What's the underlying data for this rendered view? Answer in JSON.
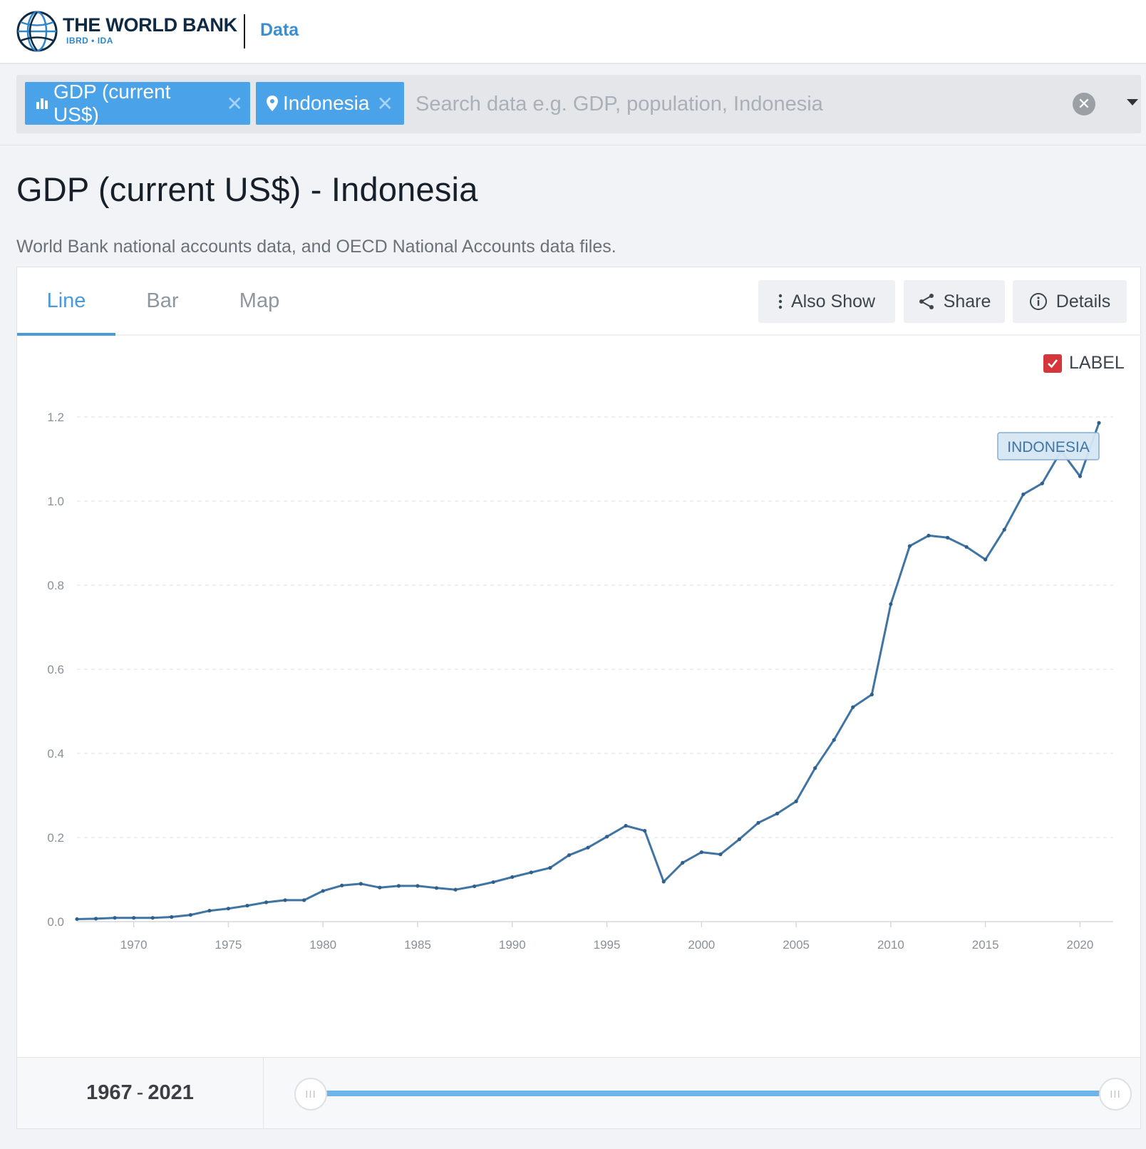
{
  "header": {
    "brand_name": "THE WORLD BANK",
    "brand_sub": "IBRD • IDA",
    "section": "Data"
  },
  "search": {
    "chips": [
      {
        "label": "GDP (current US$)",
        "icon": "bar-chart-icon"
      },
      {
        "label": "Indonesia",
        "icon": "location-pin-icon"
      }
    ],
    "placeholder": "Search data e.g. GDP, population, Indonesia"
  },
  "page": {
    "title": "GDP (current US$) - Indonesia",
    "source": "World Bank national accounts data, and OECD National Accounts data files."
  },
  "tabs": [
    {
      "label": "Line",
      "active": true
    },
    {
      "label": "Bar",
      "active": false
    },
    {
      "label": "Map",
      "active": false
    }
  ],
  "toolbar": {
    "also_show": "Also Show",
    "share": "Share",
    "details": "Details"
  },
  "label_toggle": {
    "label": "LABEL",
    "checked": true
  },
  "colors": {
    "accent": "#4aa3e8",
    "line": "#3f74a3",
    "checkbox": "#d4363c"
  },
  "chart_data": {
    "type": "line",
    "title": "",
    "xlabel": "",
    "ylabel": "",
    "xlim": [
      1967,
      2021
    ],
    "ylim": [
      0,
      1.2
    ],
    "yticks": [
      "0.0",
      "0.2",
      "0.4",
      "0.6",
      "0.8",
      "1.0",
      "1.2"
    ],
    "xticks": [
      "1970",
      "1975",
      "1980",
      "1985",
      "1990",
      "1995",
      "2000",
      "2005",
      "2010",
      "2015",
      "2020"
    ],
    "grid": true,
    "series": [
      {
        "name": "INDONESIA",
        "x": [
          1967,
          1968,
          1969,
          1970,
          1971,
          1972,
          1973,
          1974,
          1975,
          1976,
          1977,
          1978,
          1979,
          1980,
          1981,
          1982,
          1983,
          1984,
          1985,
          1986,
          1987,
          1988,
          1989,
          1990,
          1991,
          1992,
          1993,
          1994,
          1995,
          1996,
          1997,
          1998,
          1999,
          2000,
          2001,
          2002,
          2003,
          2004,
          2005,
          2006,
          2007,
          2008,
          2009,
          2010,
          2011,
          2012,
          2013,
          2014,
          2015,
          2016,
          2017,
          2018,
          2019,
          2020,
          2021
        ],
        "y": [
          0.006,
          0.007,
          0.009,
          0.009,
          0.009,
          0.011,
          0.016,
          0.026,
          0.031,
          0.038,
          0.046,
          0.051,
          0.051,
          0.073,
          0.086,
          0.09,
          0.081,
          0.085,
          0.085,
          0.08,
          0.076,
          0.084,
          0.094,
          0.106,
          0.117,
          0.128,
          0.158,
          0.176,
          0.202,
          0.228,
          0.216,
          0.095,
          0.14,
          0.165,
          0.16,
          0.196,
          0.235,
          0.257,
          0.286,
          0.365,
          0.432,
          0.51,
          0.54,
          0.755,
          0.893,
          0.918,
          0.913,
          0.891,
          0.861,
          0.932,
          1.016,
          1.042,
          1.119,
          1.059,
          1.186
        ]
      }
    ]
  },
  "range": {
    "start": "1967",
    "end": "2021",
    "separator": "-"
  }
}
